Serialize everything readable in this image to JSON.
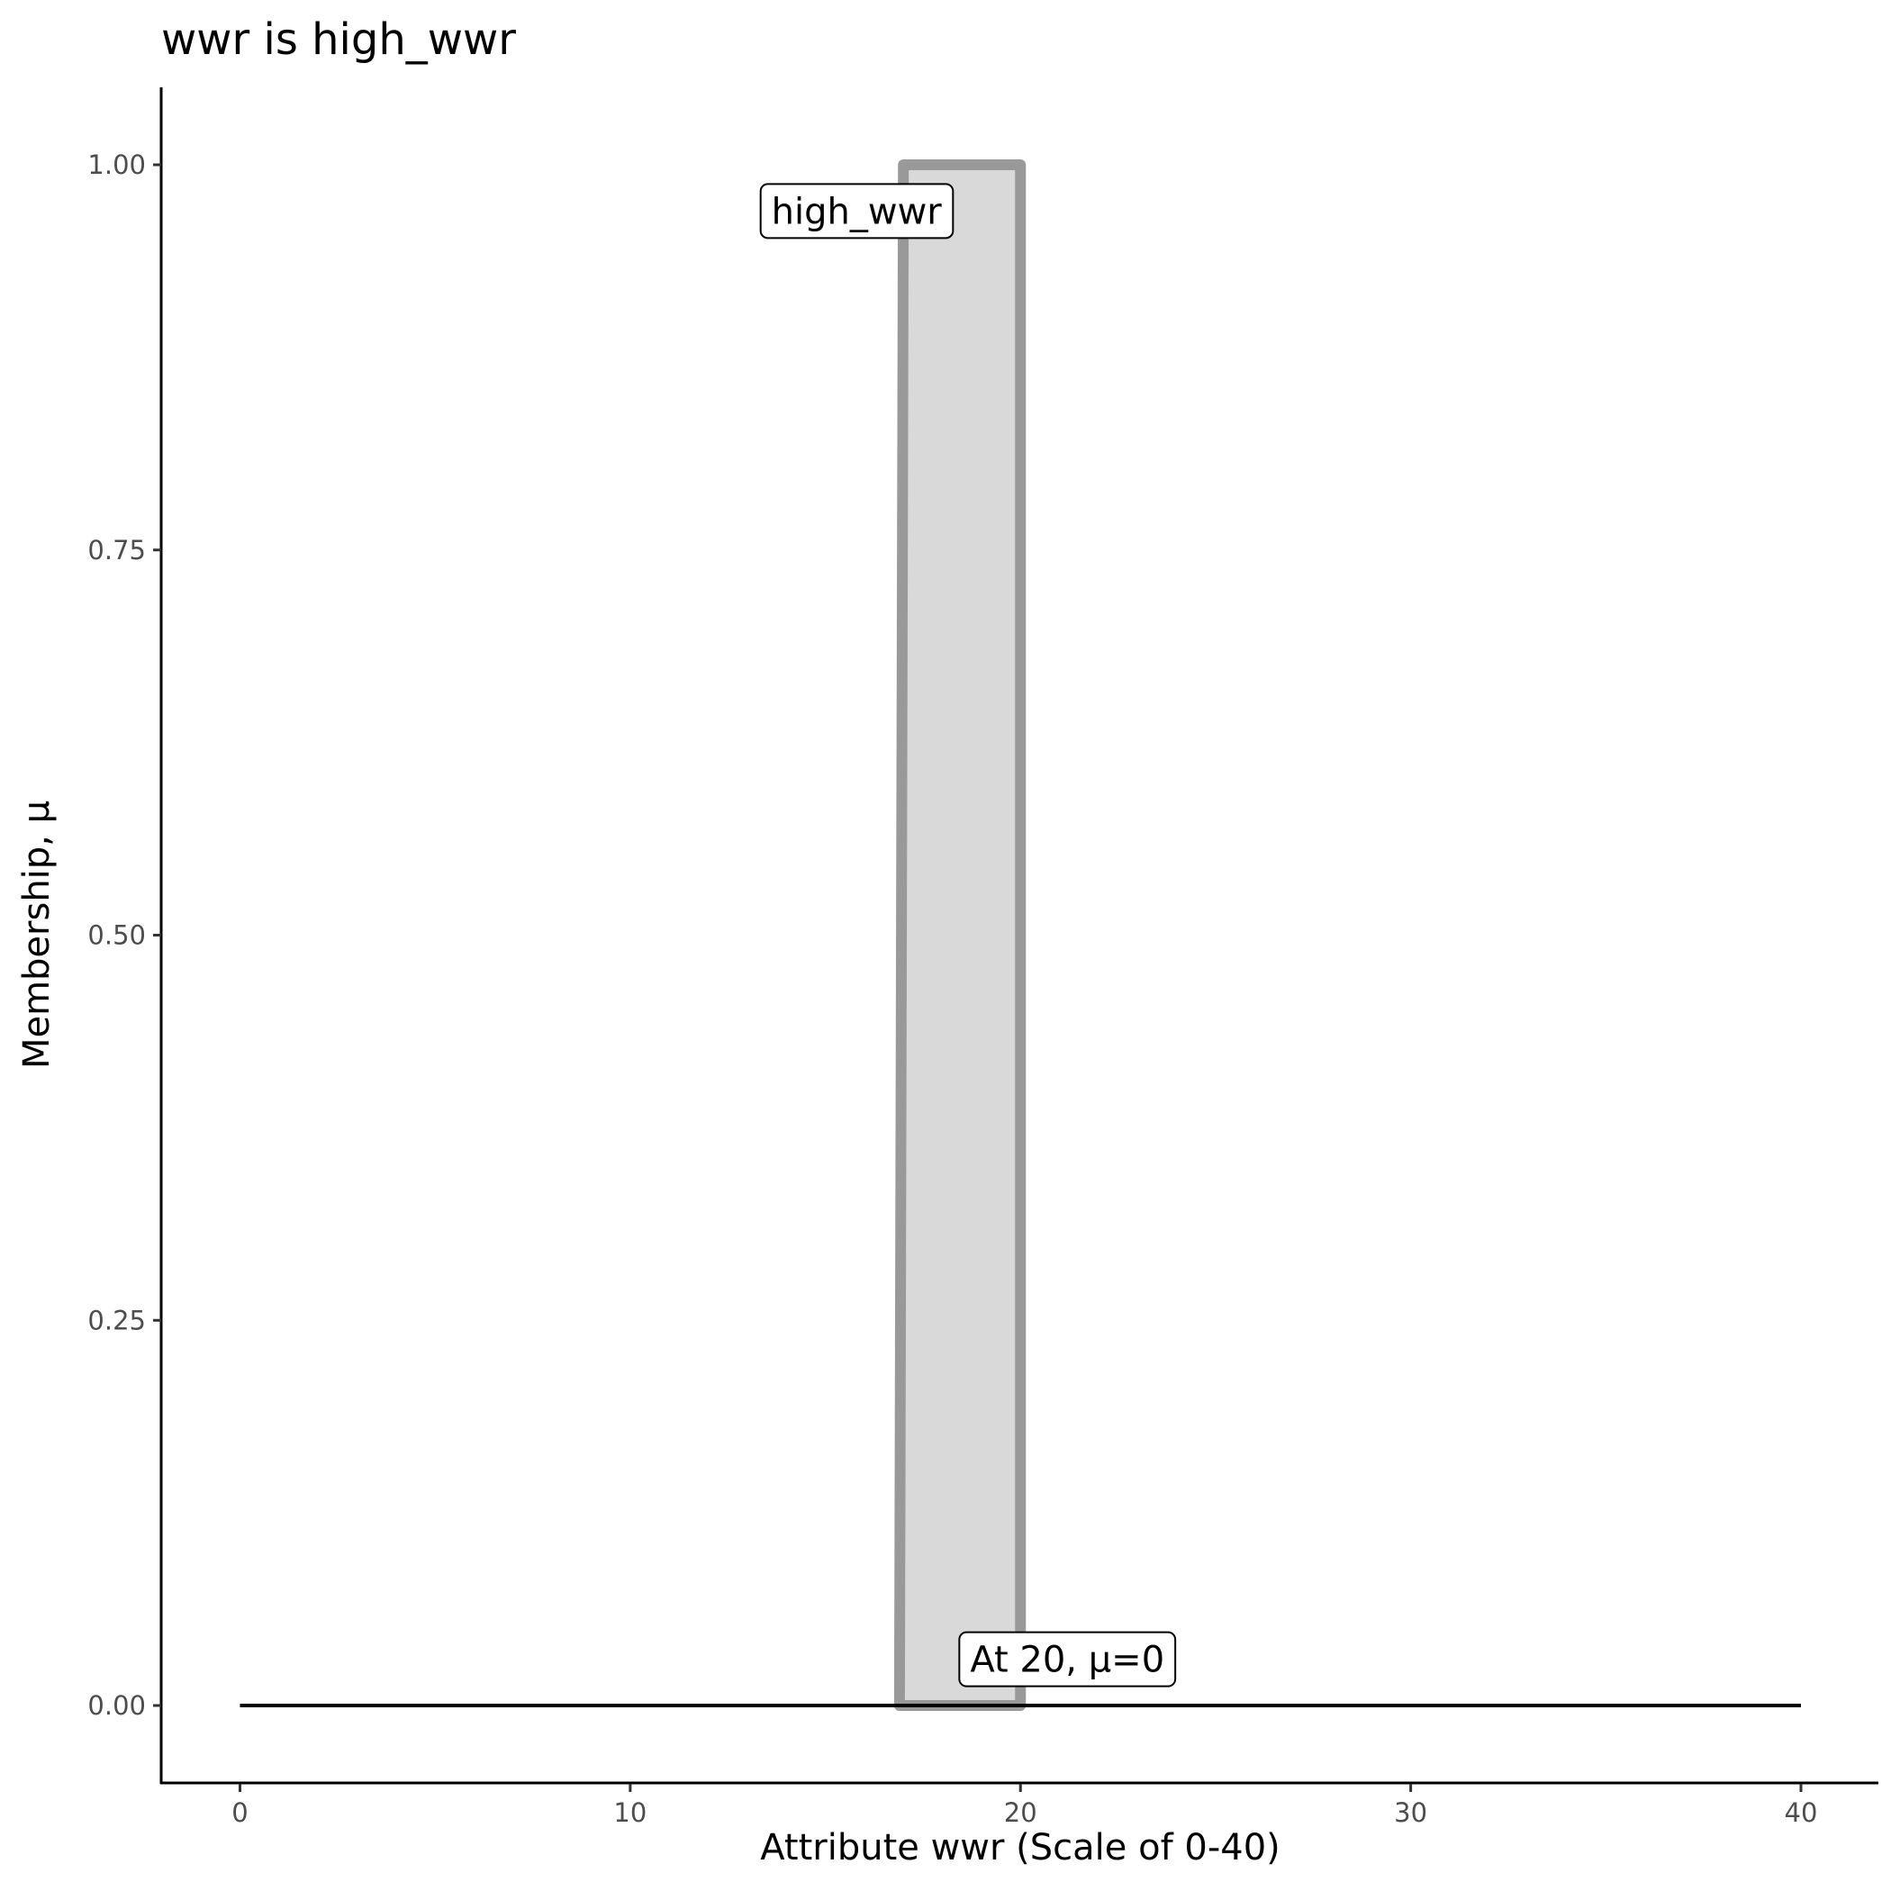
{
  "chart_data": {
    "type": "area",
    "title": "wwr is high_wwr",
    "xlabel": "Attribute wwr (Scale of 0-40)",
    "ylabel": "Membership, μ",
    "xlim": [
      -2,
      42
    ],
    "ylim": [
      -0.05,
      1.05
    ],
    "x_ticks": [
      0,
      10,
      20,
      30,
      40
    ],
    "x_tick_labels": [
      "0",
      "10",
      "20",
      "30",
      "40"
    ],
    "y_ticks": [
      0,
      0.25,
      0.5,
      0.75,
      1
    ],
    "y_tick_labels": [
      "0.00",
      "0.25",
      "0.50",
      "0.75",
      "1.00"
    ],
    "grid": false,
    "series": [
      {
        "name": "high_wwr",
        "points": [
          [
            16.9,
            0
          ],
          [
            17,
            1
          ],
          [
            20,
            1
          ],
          [
            20,
            0
          ]
        ],
        "fill": "#d9d9d9",
        "stroke": "#999999"
      }
    ],
    "baseline": {
      "x": [
        0,
        40
      ],
      "y": 0,
      "color": "#000000"
    },
    "annotations": [
      {
        "text": "high_wwr",
        "x": 15.8,
        "y": 0.97
      },
      {
        "text": "At 20, μ=0",
        "x": 21.2,
        "y": 0.03
      }
    ]
  }
}
